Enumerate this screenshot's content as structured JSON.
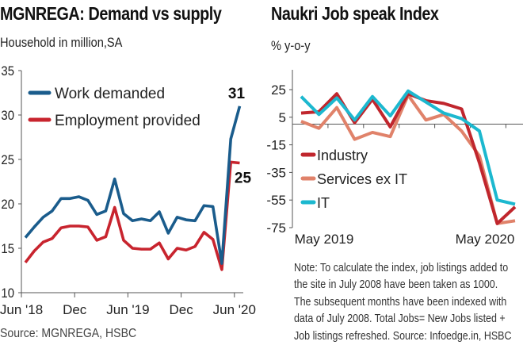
{
  "left": {
    "title": "MGNREGA: Demand vs supply",
    "subtitle": "Household in million,SA",
    "source": "Source: MGNREGA, HSBC"
  },
  "right": {
    "title": "Naukri Job speak Index",
    "subtitle": "% y-o-y",
    "note_lines": [
      "Note: To calculate the index, job listings added to",
      "the site in July 2008 have been taken as 1000.",
      "The subsequent months have been indexed with",
      "data of July 2008. Total Jobs= New Jobs listed +",
      "Job listings refreshed. Source: Infoedge.in, HSBC"
    ]
  },
  "chart_data": [
    {
      "type": "line",
      "title": "MGNREGA: Demand vs supply",
      "ylabel": "Household in million,SA",
      "xlabel": "",
      "ylim": [
        10,
        35
      ],
      "yticks": [
        10,
        15,
        20,
        25,
        30,
        35
      ],
      "xtick_labels": [
        "Jun '18",
        "Dec",
        "Jun '19",
        "Dec",
        "Jun '20"
      ],
      "xtick_month_index": [
        0,
        6,
        12,
        18,
        24
      ],
      "x": [
        "Jun 2018",
        "Jul 2018",
        "Aug 2018",
        "Sep 2018",
        "Oct 2018",
        "Nov 2018",
        "Dec 2018",
        "Jan 2019",
        "Feb 2019",
        "Mar 2019",
        "Apr 2019",
        "May 2019",
        "Jun 2019",
        "Jul 2019",
        "Aug 2019",
        "Sep 2019",
        "Oct 2019",
        "Nov 2019",
        "Dec 2019",
        "Jan 2020",
        "Feb 2020",
        "Mar 2020",
        "Apr 2020",
        "May 2020",
        "Jun 2020"
      ],
      "legend": "top-left",
      "grid": false,
      "series": [
        {
          "name": "Work demanded",
          "color": "#1a5c8c",
          "values": [
            16.2,
            17.4,
            18.5,
            19.2,
            20.6,
            20.6,
            20.8,
            20.4,
            18.8,
            19.2,
            22.8,
            18.9,
            18.1,
            18.3,
            18.1,
            19.1,
            16.7,
            18.5,
            18.2,
            18.1,
            19.8,
            19.7,
            13.3,
            27.3,
            31.0
          ],
          "end_label": "31"
        },
        {
          "name": "Employment provided",
          "color": "#c8242e",
          "values": [
            13.4,
            14.7,
            15.7,
            16.1,
            17.3,
            17.5,
            17.5,
            17.4,
            15.9,
            16.3,
            19.6,
            15.9,
            15.0,
            14.9,
            14.9,
            15.6,
            13.8,
            15.0,
            14.8,
            15.2,
            16.8,
            16.0,
            12.6,
            24.7,
            24.6
          ],
          "end_label": "25"
        }
      ]
    },
    {
      "type": "line",
      "title": "Naukri Job speak Index",
      "ylabel": "% y-o-y",
      "xlabel": "",
      "ylim": [
        -75,
        35
      ],
      "yticks": [
        -75,
        -55,
        -35,
        -15,
        5,
        25
      ],
      "xtick_labels": [
        "May 2019",
        "May 2020"
      ],
      "x": [
        "May 2019",
        "Jun 2019",
        "Jul 2019",
        "Aug 2019",
        "Sep 2019",
        "Oct 2019",
        "Nov 2019",
        "Dec 2019",
        "Jan 2020",
        "Feb 2020",
        "Mar 2020",
        "Apr 2020",
        "May 2020"
      ],
      "legend": "middle-left",
      "grid": false,
      "series": [
        {
          "name": "Industry",
          "color": "#c0262d",
          "values": [
            8,
            9,
            22,
            1,
            18,
            -2,
            22,
            17,
            15,
            11,
            -28,
            -72,
            -60
          ]
        },
        {
          "name": "Services ex IT",
          "color": "#e0826a",
          "values": [
            2,
            -3,
            12,
            -11,
            -6,
            -9,
            21,
            3,
            7,
            -5,
            -23,
            -72,
            -70
          ]
        },
        {
          "name": "IT",
          "color": "#1cb8cf",
          "values": [
            20,
            7,
            19,
            3,
            20,
            6,
            24,
            16,
            8,
            4,
            -5,
            -55,
            -58
          ]
        }
      ]
    }
  ]
}
